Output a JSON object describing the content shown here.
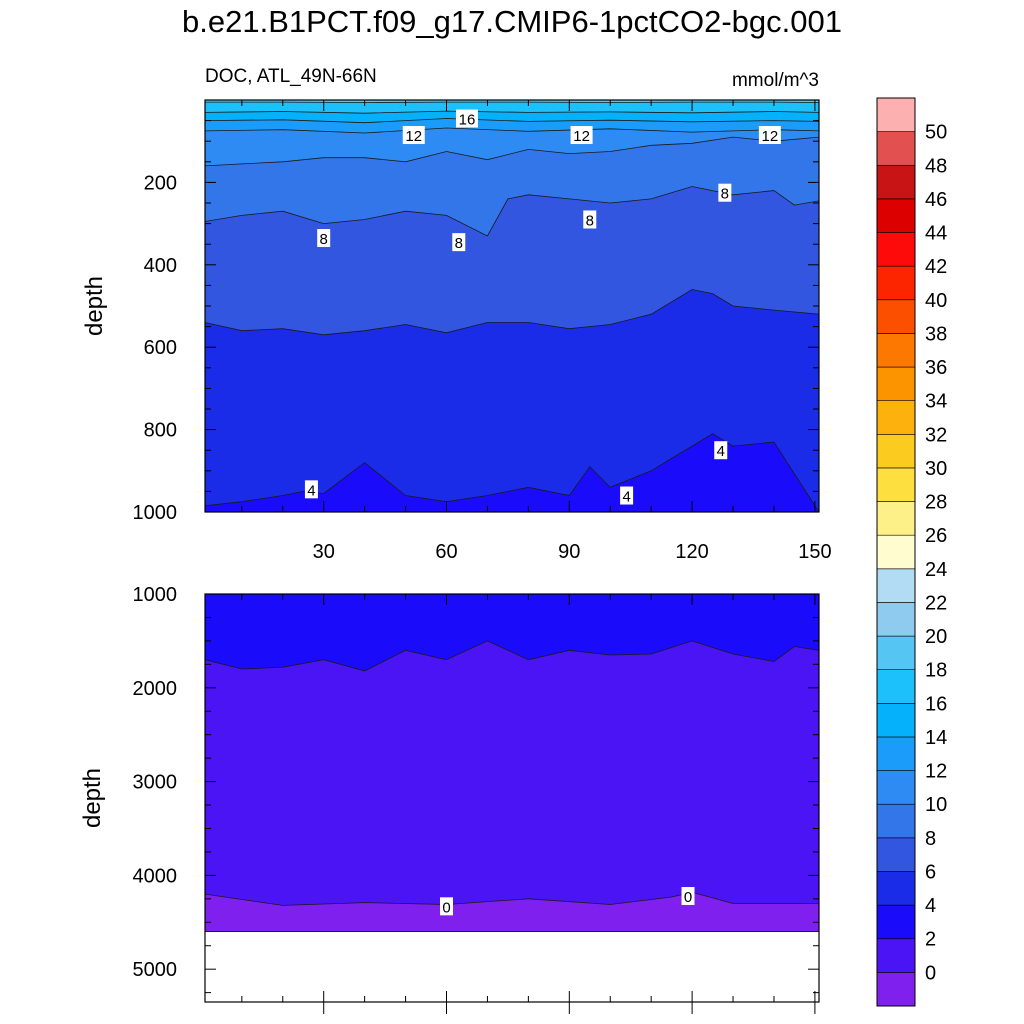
{
  "figure": {
    "title": "b.e21.B1PCT.f09_g17.CMIP6-1pctCO2-bgc.001"
  },
  "chart_data": [
    {
      "type": "heatmap",
      "subtitle_left": "DOC, ATL_49N-66N",
      "subtitle_right": "mmol/m^3",
      "ylabel": "depth",
      "xlabel": "",
      "xlim": [
        1,
        151
      ],
      "ylim": [
        1000,
        0
      ],
      "xticks": [
        30,
        60,
        90,
        120,
        150
      ],
      "xticklabels": [
        "30",
        "60",
        "90",
        "120",
        "150"
      ],
      "yticks": [
        200,
        400,
        600,
        800,
        1000
      ],
      "yticklabels": [
        "200",
        "400",
        "600",
        "800",
        "1000"
      ],
      "contour_boundaries": [
        {
          "level": 18,
          "x": [
            1,
            20,
            40,
            60,
            80,
            100,
            120,
            140,
            151
          ],
          "depth": [
            5,
            5,
            6,
            5,
            5,
            6,
            5,
            5,
            6
          ]
        },
        {
          "level": 16,
          "x": [
            1,
            20,
            40,
            60,
            80,
            100,
            120,
            140,
            151
          ],
          "depth": [
            30,
            28,
            32,
            27,
            30,
            29,
            31,
            28,
            30
          ]
        },
        {
          "level": 14,
          "x": [
            1,
            20,
            40,
            60,
            80,
            100,
            120,
            140,
            151
          ],
          "depth": [
            50,
            48,
            55,
            45,
            52,
            49,
            53,
            50,
            52
          ]
        },
        {
          "level": 12,
          "x": [
            1,
            20,
            40,
            60,
            80,
            100,
            120,
            140,
            151
          ],
          "depth": [
            75,
            72,
            80,
            68,
            76,
            70,
            78,
            72,
            75
          ]
        },
        {
          "level": 10,
          "x": [
            1,
            10,
            20,
            30,
            40,
            50,
            60,
            70,
            80,
            90,
            100,
            110,
            120,
            130,
            140,
            151
          ],
          "depth": [
            160,
            155,
            150,
            140,
            140,
            150,
            125,
            145,
            120,
            130,
            125,
            110,
            105,
            90,
            100,
            90
          ]
        },
        {
          "level": 8,
          "x": [
            1,
            10,
            20,
            30,
            40,
            50,
            60,
            70,
            75,
            80,
            90,
            100,
            110,
            120,
            130,
            140,
            145,
            151
          ],
          "depth": [
            295,
            280,
            270,
            300,
            290,
            270,
            280,
            330,
            240,
            230,
            240,
            250,
            240,
            210,
            230,
            220,
            255,
            245
          ]
        },
        {
          "level": 6,
          "x": [
            1,
            10,
            20,
            30,
            40,
            50,
            60,
            70,
            80,
            90,
            100,
            110,
            120,
            125,
            130,
            140,
            151
          ],
          "depth": [
            540,
            560,
            555,
            570,
            560,
            545,
            565,
            540,
            540,
            555,
            545,
            520,
            460,
            470,
            500,
            510,
            520
          ]
        },
        {
          "level": 4,
          "x": [
            1,
            10,
            20,
            25,
            30,
            40,
            50,
            60,
            70,
            80,
            90,
            95,
            100,
            110,
            115,
            120,
            125,
            130,
            140,
            151
          ],
          "depth": [
            985,
            975,
            960,
            950,
            955,
            880,
            960,
            975,
            960,
            940,
            960,
            890,
            940,
            900,
            870,
            840,
            810,
            840,
            830,
            1000
          ]
        }
      ],
      "contour_labels": [
        {
          "text": "16",
          "x": 65,
          "depth": 45
        },
        {
          "text": "12",
          "x": 52,
          "depth": 85
        },
        {
          "text": "12",
          "x": 93,
          "depth": 85
        },
        {
          "text": "12",
          "x": 139,
          "depth": 85
        },
        {
          "text": "8",
          "x": 30,
          "depth": 335
        },
        {
          "text": "8",
          "x": 63,
          "depth": 345
        },
        {
          "text": "8",
          "x": 95,
          "depth": 290
        },
        {
          "text": "8",
          "x": 128,
          "depth": 225
        },
        {
          "text": "4",
          "x": 27,
          "depth": 945
        },
        {
          "text": "4",
          "x": 104,
          "depth": 960
        },
        {
          "text": "4",
          "x": 127,
          "depth": 850
        }
      ]
    },
    {
      "type": "heatmap",
      "subtitle_left": "",
      "subtitle_right": "",
      "ylabel": "depth",
      "xlabel": "",
      "xlim": [
        1,
        151
      ],
      "ylim": [
        5350,
        1000
      ],
      "yticks": [
        1000,
        2000,
        3000,
        4000,
        5000
      ],
      "yticklabels": [
        "1000",
        "2000",
        "3000",
        "4000",
        "5000"
      ],
      "bottom_no_data_below_depth": 4600,
      "contour_boundaries": [
        {
          "level": 2,
          "x": [
            1,
            10,
            20,
            30,
            40,
            50,
            60,
            70,
            80,
            90,
            100,
            110,
            120,
            130,
            140,
            145,
            151
          ],
          "depth": [
            1700,
            1800,
            1780,
            1700,
            1820,
            1600,
            1700,
            1500,
            1700,
            1600,
            1650,
            1640,
            1500,
            1640,
            1720,
            1560,
            1600
          ]
        },
        {
          "level": 0,
          "x": [
            1,
            20,
            40,
            60,
            80,
            100,
            115,
            120,
            130,
            151
          ],
          "depth": [
            4200,
            4320,
            4290,
            4310,
            4250,
            4310,
            4230,
            4180,
            4300,
            4300
          ]
        }
      ],
      "contour_labels": [
        {
          "text": "0",
          "x": 60,
          "depth": 4330
        },
        {
          "text": "0",
          "x": 119,
          "depth": 4220
        }
      ]
    }
  ],
  "colorbar": {
    "levels": [
      0,
      2,
      4,
      6,
      8,
      10,
      12,
      14,
      16,
      18,
      20,
      22,
      24,
      26,
      28,
      30,
      32,
      34,
      36,
      38,
      40,
      42,
      44,
      46,
      48,
      50
    ],
    "labels": [
      "0",
      "2",
      "4",
      "6",
      "8",
      "10",
      "12",
      "14",
      "16",
      "18",
      "20",
      "22",
      "24",
      "26",
      "28",
      "30",
      "32",
      "34",
      "36",
      "38",
      "40",
      "42",
      "44",
      "46",
      "48",
      "50"
    ],
    "colors": [
      "#8020ee",
      "#4b14f4",
      "#1a0cfa",
      "#1b2ce8",
      "#3256e0",
      "#3276ea",
      "#2e8bf4",
      "#1b9cfa",
      "#04b1fa",
      "#1cc0fa",
      "#55c5f4",
      "#8ecbee",
      "#b2dcf4",
      "#fffdd0",
      "#fef088",
      "#fde040",
      "#fccb20",
      "#fcb10c",
      "#fc9400",
      "#fc7800",
      "#fc5000",
      "#fd2400",
      "#fd0a0a",
      "#dc0000",
      "#c81414",
      "#e25050",
      "#fcb0b0"
    ]
  }
}
